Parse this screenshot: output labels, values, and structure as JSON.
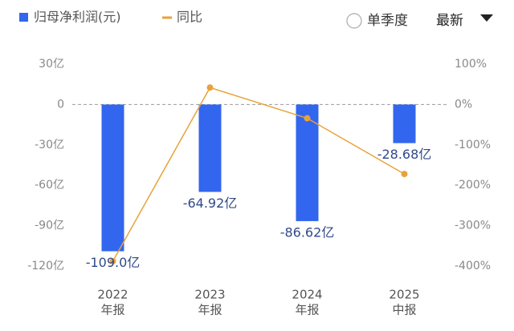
{
  "chart_data": {
    "type": "bar-line",
    "categories": [
      "2022",
      "2023",
      "2024",
      "2025"
    ],
    "category_sublabels": [
      "年报",
      "年报",
      "年报",
      "中报"
    ],
    "series": [
      {
        "name": "归母净利润(元)",
        "color": "#3366ee",
        "type": "bar",
        "values": [
          -109.0,
          -64.92,
          -86.62,
          -28.68
        ],
        "value_labels": [
          "-109.0亿",
          "-64.92亿",
          "-86.62亿",
          "-28.68亿"
        ]
      },
      {
        "name": "同比",
        "color": "#e8a23a",
        "type": "line",
        "axis": "y2",
        "values": [
          -388,
          42,
          -34,
          -172
        ]
      }
    ],
    "ylim": [
      -120,
      30
    ],
    "yticks": [
      {
        "value": 30,
        "label": "30亿"
      },
      0,
      {
        "value": -30,
        "label": "-30亿"
      },
      {
        "value": -60,
        "label": "-60亿"
      },
      {
        "value": -90,
        "label": "-90亿"
      },
      {
        "value": -120,
        "label": "-120亿"
      }
    ],
    "y2lim": [
      -400,
      100
    ],
    "y2ticks": [
      {
        "value": 100,
        "label": "100%"
      },
      {
        "value": 0,
        "label": "0%"
      },
      {
        "value": -100,
        "label": "-100%"
      },
      {
        "value": -200,
        "label": "-200%"
      },
      {
        "value": -300,
        "label": "-300%"
      },
      {
        "value": -400,
        "label": "-400%"
      }
    ],
    "controls": {
      "period": "单季度",
      "sort": "最新"
    }
  }
}
